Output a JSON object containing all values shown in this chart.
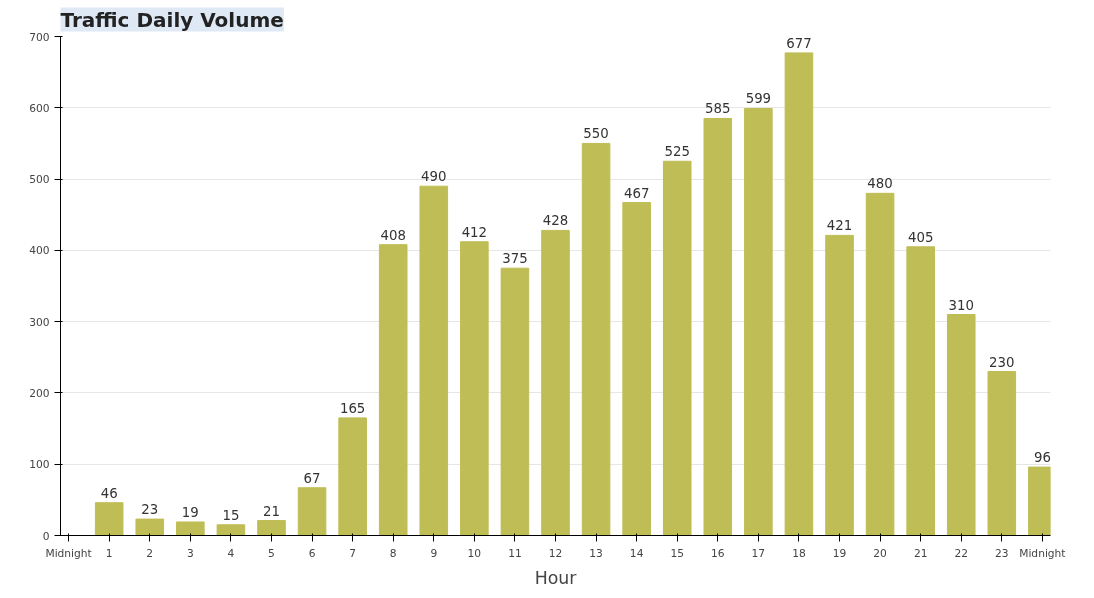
{
  "chart_data": {
    "type": "bar",
    "title": "Traffic Daily Volume",
    "xlabel": "Hour",
    "x": [
      1,
      2,
      3,
      4,
      5,
      6,
      7,
      8,
      9,
      10,
      11,
      12,
      13,
      14,
      15,
      16,
      17,
      18,
      19,
      20,
      21,
      22,
      23,
      24
    ],
    "values": [
      46,
      23,
      19,
      15,
      21,
      67,
      165,
      408,
      490,
      412,
      375,
      428,
      550,
      467,
      525,
      585,
      599,
      677,
      421,
      480,
      405,
      310,
      230,
      96
    ],
    "color": "#bfbd55",
    "xlim": [
      -0.2,
      24.2
    ],
    "xticks": [
      {
        "value": 0,
        "label": "Midnight"
      },
      1,
      2,
      3,
      4,
      5,
      6,
      7,
      8,
      9,
      10,
      11,
      12,
      13,
      14,
      15,
      16,
      17,
      18,
      19,
      20,
      21,
      22,
      23,
      {
        "value": 24,
        "label": "Midnight"
      }
    ],
    "ylim": [
      0,
      700
    ],
    "yticks": [
      0,
      100,
      200,
      300,
      400,
      500,
      600,
      700
    ],
    "grid": "y",
    "data_labels": true
  }
}
